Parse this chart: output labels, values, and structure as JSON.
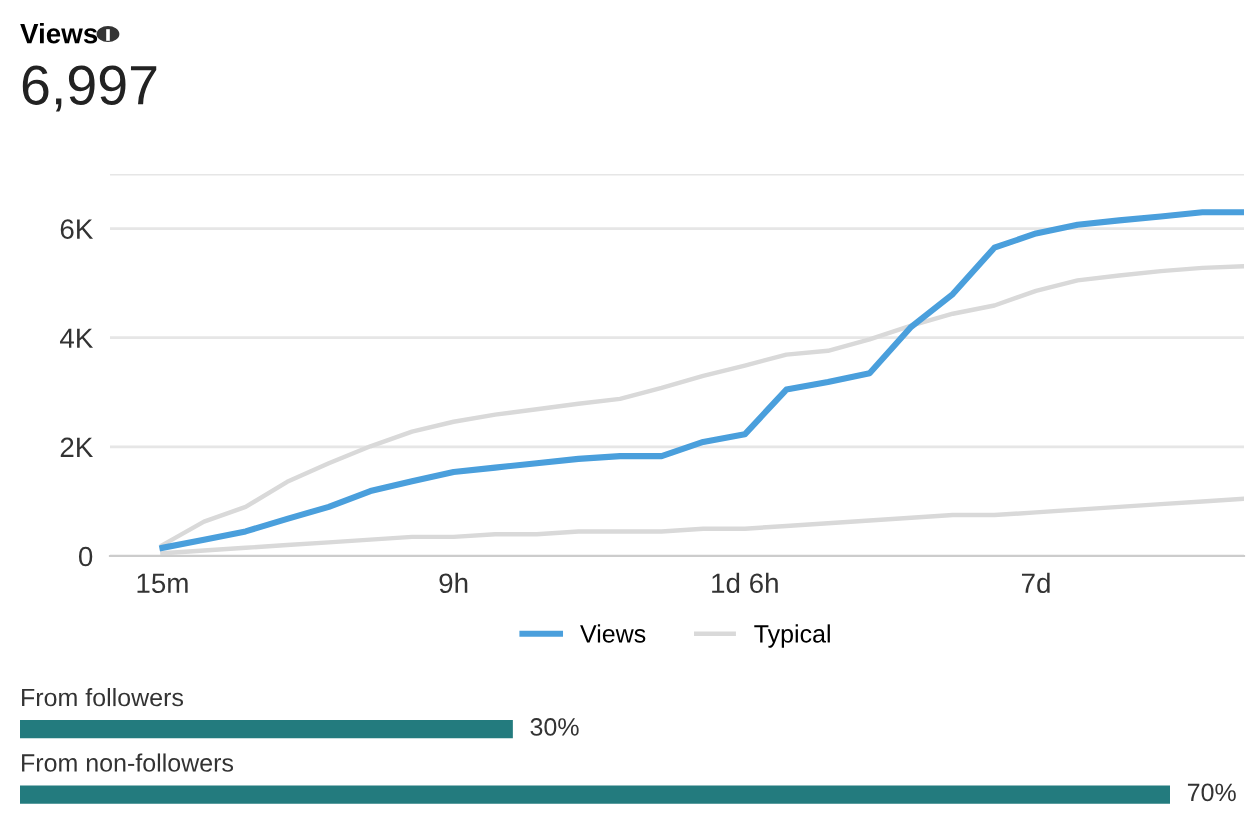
{
  "chart_data": [
    {
      "type": "line",
      "title": "Views",
      "subtitle": "6,997",
      "legend": "bottom",
      "grid": "y",
      "marker": "none",
      "line_style": "solid",
      "categories": [
        "15m",
        null,
        null,
        null,
        null,
        null,
        null,
        "9h",
        null,
        null,
        null,
        null,
        null,
        null,
        "1d 6h",
        null,
        null,
        null,
        null,
        null,
        null,
        "7d",
        null,
        null,
        null,
        null,
        null
      ],
      "ylim": [
        0,
        7000
      ],
      "yticks": [
        0,
        {
          "value": 2000,
          "label": "2K"
        },
        {
          "value": 4000,
          "label": "4K"
        },
        {
          "value": 6000,
          "label": "6K"
        },
        {
          "value": 7000,
          "label": null
        }
      ],
      "series": [
        {
          "name": "Views",
          "color": "#4a9fdc",
          "values": [
            150,
            300,
            450,
            680,
            900,
            1190,
            1370,
            1540,
            1620,
            1700,
            1780,
            1830,
            1830,
            2090,
            2230,
            3050,
            3190,
            3350,
            4200,
            4800,
            5650,
            5910,
            6070,
            6150,
            6220,
            6300,
            6300
          ]
        },
        {
          "name": "Typical",
          "color": "#d9d9d9",
          "values": [
            200,
            630,
            900,
            1360,
            1700,
            2010,
            2280,
            2460,
            2590,
            2690,
            2790,
            2880,
            3080,
            3300,
            3490,
            3690,
            3760,
            3970,
            4220,
            4440,
            4590,
            4860,
            5050,
            5140,
            5220,
            5280,
            5310
          ]
        },
        {
          "color": "#d9d9d9",
          "values": [
            50,
            100,
            150,
            200,
            250,
            300,
            350,
            350,
            400,
            400,
            450,
            450,
            450,
            500,
            500,
            550,
            600,
            650,
            700,
            750,
            750,
            800,
            850,
            900,
            950,
            1000,
            1050
          ]
        }
      ]
    },
    {
      "type": "bar",
      "orientation": "horizontal",
      "categories": [
        "From followers",
        "From non-followers"
      ],
      "values": [
        30,
        70
      ],
      "value_labels": [
        "30%",
        "70%"
      ],
      "color": "#237b7e",
      "xlim": [
        0,
        70
      ]
    }
  ]
}
